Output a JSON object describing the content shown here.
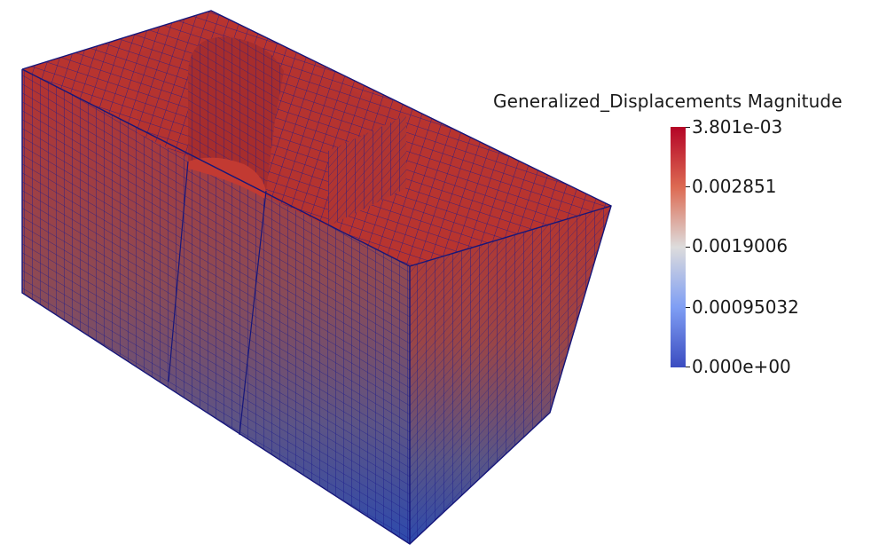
{
  "legend": {
    "title": "Generalized_Displacements Magnitude",
    "labels": [
      "3.801e-03",
      "0.002851",
      "0.0019006",
      "0.00095032",
      "0.000e+00"
    ],
    "colormap": [
      "#b40426",
      "#dd6a52",
      "#dddcdc",
      "#7f9ef4",
      "#3b4cc0"
    ]
  },
  "mesh": {
    "edge_color": "#1a1a8c",
    "top_color": "#b5312f",
    "bottom_color": "#2e4cae"
  }
}
